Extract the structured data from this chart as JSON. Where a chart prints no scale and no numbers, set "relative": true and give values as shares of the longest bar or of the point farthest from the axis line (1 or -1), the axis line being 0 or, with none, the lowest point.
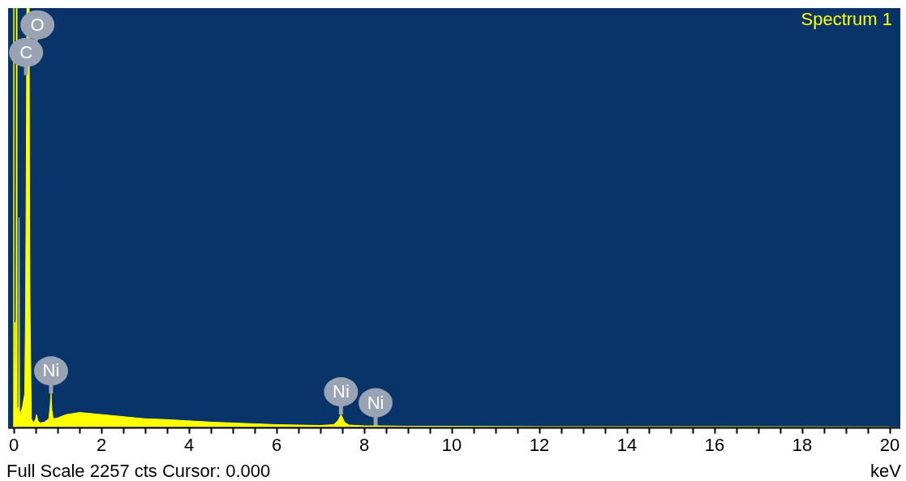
{
  "chart_data": {
    "type": "area",
    "relative": true,
    "xlabel": "keV",
    "legend": "top right",
    "xlim": [
      -0.13,
      20.24
    ],
    "xticks": [
      0,
      {
        "value": 0.5,
        "label": null
      },
      {
        "value": 1,
        "label": null
      },
      {
        "value": 1.5,
        "label": null
      },
      2,
      {
        "value": 2.5,
        "label": null
      },
      {
        "value": 3,
        "label": null
      },
      {
        "value": 3.5,
        "label": null
      },
      4,
      {
        "value": 4.5,
        "label": null
      },
      {
        "value": 5,
        "label": null
      },
      {
        "value": 5.5,
        "label": null
      },
      6,
      {
        "value": 6.5,
        "label": null
      },
      {
        "value": 7,
        "label": null
      },
      {
        "value": 7.5,
        "label": null
      },
      8,
      {
        "value": 8.5,
        "label": null
      },
      {
        "value": 9,
        "label": null
      },
      {
        "value": 9.5,
        "label": null
      },
      10,
      {
        "value": 10.5,
        "label": null
      },
      {
        "value": 11,
        "label": null
      },
      {
        "value": 11.5,
        "label": null
      },
      12,
      {
        "value": 12.5,
        "label": null
      },
      {
        "value": 13,
        "label": null
      },
      {
        "value": 13.5,
        "label": null
      },
      14,
      {
        "value": 14.5,
        "label": null
      },
      {
        "value": 15,
        "label": null
      },
      {
        "value": 15.5,
        "label": null
      },
      16,
      {
        "value": 16.5,
        "label": null
      },
      {
        "value": 17,
        "label": null
      },
      {
        "value": 17.5,
        "label": null
      },
      18,
      {
        "value": 18.5,
        "label": null
      },
      {
        "value": 19,
        "label": null
      },
      {
        "value": 19.5,
        "label": null
      },
      20
    ],
    "series": [
      {
        "name": "Spectrum 1",
        "color": "#ffff00",
        "x": [
          0,
          0.03,
          0.05,
          0.06,
          0.07,
          0.09,
          0.11,
          0.12,
          0.13,
          0.15,
          0.2,
          0.25,
          0.27,
          0.28,
          0.3,
          0.35,
          0.36,
          0.37,
          0.4,
          0.45,
          0.5,
          0.52,
          0.55,
          0.6,
          0.7,
          0.8,
          0.83,
          0.85,
          0.87,
          0.9,
          1,
          1.2,
          1.5,
          2,
          2.5,
          3,
          3.5,
          4,
          4.5,
          5,
          5.5,
          6,
          6.5,
          7,
          7.3,
          7.4,
          7.47,
          7.55,
          7.65,
          8,
          8.2,
          8.26,
          8.35,
          9,
          10,
          11,
          12,
          14,
          16,
          18,
          20
        ],
        "values": [
          0,
          0.25,
          0.05,
          1,
          0.05,
          0.04,
          0.05,
          0.5,
          0.04,
          0.03,
          0.05,
          0.08,
          0.3,
          0.5,
          1,
          1,
          0.5,
          0.3,
          0.02,
          0.01,
          0.02,
          0.03,
          0.015,
          0.01,
          0.012,
          0.02,
          0.05,
          0.08,
          0.04,
          0.02,
          0.022,
          0.03,
          0.035,
          0.03,
          0.025,
          0.02,
          0.018,
          0.015,
          0.012,
          0.01,
          0.008,
          0.006,
          0.005,
          0.004,
          0.006,
          0.015,
          0.03,
          0.012,
          0.005,
          0.003,
          0.003,
          0.004,
          0.003,
          0.002,
          0.002,
          0.0015,
          0.001,
          0.001,
          0.001,
          0.0008,
          0.0005
        ]
      }
    ],
    "ref_lines": [
      {
        "axis": "x",
        "value": 0,
        "color": "#ffff00"
      }
    ],
    "annotations": [
      {
        "text": "C",
        "x": 0.28,
        "y": 0.84
      },
      {
        "text": "O",
        "x": 0.3524,
        "y": 0.88
      },
      {
        "text": "Ni",
        "x": 0.85,
        "y": 0.08
      },
      {
        "text": "Ni",
        "x": 7.47,
        "y": 0.03
      },
      {
        "text": "Ni",
        "x": 8.26,
        "y": 0.004
      },
      "Full Scale 2257 cts Cursor: 0.000"
    ]
  }
}
